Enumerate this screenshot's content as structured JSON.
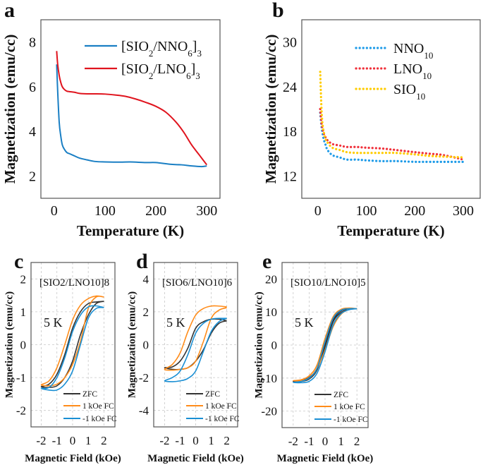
{
  "chart_data": [
    {
      "panel": "a",
      "type": "line",
      "xlabel": "Temperature (K)",
      "ylabel": "Magnetization (emu/cc)",
      "xlim": [
        -26,
        326
      ],
      "ylim": [
        1,
        9
      ],
      "xticks": [
        0,
        100,
        200,
        300
      ],
      "yticks": [
        2,
        4,
        6,
        8
      ],
      "grid": false,
      "legend_position": "top-right",
      "series": [
        {
          "name": "[SIO2/NNO6]3",
          "color": "#1a7fc4",
          "style": "solid",
          "x": [
            5,
            7,
            10,
            13,
            16,
            20,
            25,
            30,
            40,
            50,
            65,
            80,
            100,
            130,
            150,
            180,
            200,
            230,
            250,
            270,
            290,
            300
          ],
          "y": [
            7.0,
            5.8,
            4.4,
            3.8,
            3.4,
            3.2,
            3.05,
            3.0,
            2.9,
            2.8,
            2.72,
            2.65,
            2.63,
            2.62,
            2.63,
            2.6,
            2.6,
            2.52,
            2.5,
            2.45,
            2.42,
            2.45
          ]
        },
        {
          "name": "[SIO2/LNO6]3",
          "color": "#e0141e",
          "style": "solid",
          "x": [
            5,
            7,
            10,
            13,
            16,
            20,
            25,
            30,
            40,
            50,
            65,
            80,
            100,
            120,
            140,
            160,
            180,
            200,
            220,
            240,
            255,
            270,
            285,
            300
          ],
          "y": [
            7.6,
            7.0,
            6.5,
            6.2,
            6.0,
            5.88,
            5.8,
            5.78,
            5.75,
            5.7,
            5.68,
            5.68,
            5.67,
            5.63,
            5.57,
            5.45,
            5.3,
            5.12,
            4.85,
            4.4,
            3.95,
            3.4,
            2.95,
            2.5
          ]
        }
      ]
    },
    {
      "panel": "b",
      "type": "scatter",
      "xlabel": "Temperature (K)",
      "ylabel": "Magnetization (emu/cc)",
      "xlim": [
        -33,
        335
      ],
      "ylim": [
        9,
        33
      ],
      "xticks": [
        0,
        100,
        200,
        300
      ],
      "yticks": [
        12,
        18,
        24,
        30
      ],
      "grid": false,
      "legend_position": "top-right",
      "series": [
        {
          "name": "NNO10",
          "color": "#1e9be8",
          "style": "dotted",
          "x": [
            5,
            8,
            12,
            16,
            20,
            30,
            45,
            60,
            80,
            100,
            130,
            160,
            200,
            230,
            260,
            300
          ],
          "y": [
            20.5,
            18.5,
            17.0,
            16.2,
            15.5,
            14.8,
            14.5,
            14.2,
            14.2,
            14.1,
            14.0,
            14.0,
            13.9,
            13.9,
            13.9,
            13.9
          ]
        },
        {
          "name": "LNO10",
          "color": "#f0313b",
          "style": "dotted",
          "x": [
            5,
            8,
            12,
            16,
            20,
            30,
            45,
            60,
            80,
            100,
            130,
            160,
            200,
            230,
            260,
            300
          ],
          "y": [
            21.0,
            19.0,
            17.8,
            17.2,
            16.8,
            16.3,
            16.1,
            15.9,
            15.9,
            15.8,
            15.7,
            15.5,
            15.2,
            15.0,
            14.8,
            14.2
          ]
        },
        {
          "name": "SIO10",
          "color": "#ffcc00",
          "style": "dotted",
          "x": [
            5,
            6,
            7,
            9,
            12,
            16,
            20,
            30,
            45,
            60,
            80,
            100,
            130,
            160,
            200,
            230,
            260,
            300
          ],
          "y": [
            26.0,
            24.0,
            22.0,
            19.5,
            18.0,
            17.0,
            16.5,
            15.8,
            15.5,
            15.2,
            15.1,
            15.1,
            15.1,
            15.1,
            14.9,
            14.7,
            14.6,
            14.5
          ]
        }
      ]
    },
    {
      "panel": "c",
      "type": "line",
      "title": "[SIO2/LNO10]8",
      "annotation": "5 K",
      "xlabel": "Magnetic Field (kOe)",
      "ylabel": "Magnetization (emu/cc)",
      "xlim": [
        -2.65,
        2.7
      ],
      "ylim": [
        -2.5,
        2.5
      ],
      "xticks": [
        -2,
        -1,
        0,
        1,
        2
      ],
      "yticks": [
        -2,
        -1,
        0,
        1,
        2
      ],
      "grid": true,
      "legend_position": "bottom-right",
      "series": [
        {
          "name": "ZFC",
          "color": "#333333",
          "x": [
            2,
            1.5,
            1,
            0.5,
            0,
            -0.5,
            -1,
            -1.5,
            -2,
            -1.5,
            -1,
            -0.5,
            0,
            0.5,
            1,
            1.5,
            2
          ],
          "y": [
            1.32,
            1.3,
            1.25,
            1.0,
            0.5,
            -0.3,
            -0.9,
            -1.2,
            -1.28,
            -1.3,
            -1.25,
            -1.0,
            -0.5,
            0.3,
            0.9,
            1.25,
            1.32
          ]
        },
        {
          "name": "1 kOe FC",
          "color": "#ff8c1a",
          "x": [
            2,
            1.5,
            1,
            0.5,
            0,
            -0.5,
            -1,
            -1.5,
            -2,
            -1.5,
            -1,
            -0.5,
            0,
            0.5,
            1,
            1.5,
            2
          ],
          "y": [
            1.45,
            1.48,
            1.4,
            1.2,
            0.75,
            0.0,
            -0.7,
            -1.1,
            -1.22,
            -1.25,
            -1.2,
            -1.0,
            -0.6,
            0.1,
            1.1,
            1.45,
            1.45
          ]
        },
        {
          "name": "-1 kOe FC",
          "color": "#1a8fd4",
          "x": [
            2,
            1.5,
            1,
            0.5,
            0,
            -0.5,
            -1,
            -1.5,
            -2,
            -1.5,
            -1,
            -0.5,
            0,
            0.5,
            1,
            1.5,
            2
          ],
          "y": [
            1.13,
            1.18,
            1.15,
            0.9,
            0.4,
            -0.4,
            -1.0,
            -1.3,
            -1.33,
            -1.38,
            -1.38,
            -1.2,
            -0.8,
            0.0,
            0.8,
            1.1,
            1.13
          ]
        }
      ]
    },
    {
      "panel": "d",
      "type": "line",
      "title": "[SIO6/LNO10]6",
      "annotation": "5 K",
      "xlabel": "Magnetic Field (kOe)",
      "ylabel": "Magnetization (emu/cc)",
      "xlim": [
        -2.7,
        2.7
      ],
      "ylim": [
        -5,
        5
      ],
      "xticks": [
        -2,
        -1,
        0,
        1,
        2
      ],
      "yticks": [
        -4,
        -2,
        0,
        2,
        4
      ],
      "grid": true,
      "legend_position": "bottom-right",
      "series": [
        {
          "name": "ZFC",
          "color": "#333333",
          "x": [
            2,
            1.5,
            1,
            0.5,
            0,
            -0.5,
            -1,
            -1.5,
            -2,
            -1.5,
            -1,
            -0.5,
            0,
            0.5,
            1,
            1.5,
            2
          ],
          "y": [
            1.45,
            1.55,
            1.55,
            1.4,
            1.0,
            -0.2,
            -1.0,
            -1.35,
            -1.4,
            -1.5,
            -1.5,
            -1.4,
            -1.0,
            -0.3,
            0.7,
            1.3,
            1.45
          ]
        },
        {
          "name": "1 kOe FC",
          "color": "#ff8c1a",
          "x": [
            2,
            1.5,
            1,
            0.5,
            0,
            -0.5,
            -1,
            -1.5,
            -2,
            -1.5,
            -1,
            -0.5,
            0,
            0.5,
            1,
            1.5,
            2
          ],
          "y": [
            2.3,
            2.35,
            2.35,
            2.2,
            1.8,
            0.8,
            -0.5,
            -1.2,
            -1.5,
            -1.55,
            -1.5,
            -1.4,
            -1.0,
            0.2,
            1.6,
            2.1,
            2.25
          ]
        },
        {
          "name": "-1 kOe FC",
          "color": "#1a8fd4",
          "x": [
            2,
            1.5,
            1,
            0.5,
            0,
            -0.5,
            -1,
            -1.5,
            -2,
            -1.5,
            -1,
            -0.5,
            0,
            0.5,
            1,
            1.5,
            2
          ],
          "y": [
            1.6,
            1.6,
            1.55,
            1.3,
            0.7,
            -0.6,
            -1.6,
            -2.0,
            -2.2,
            -2.25,
            -2.2,
            -2.05,
            -1.6,
            -0.4,
            0.8,
            1.4,
            1.6
          ]
        }
      ]
    },
    {
      "panel": "e",
      "type": "line",
      "title": "[SIO10/LNO10]5",
      "annotation": "5 K",
      "xlabel": "Magnetic Field (kOe)",
      "ylabel": "Magnetization (emu/cc)",
      "xlim": [
        -2.7,
        2.7
      ],
      "ylim": [
        -25,
        25
      ],
      "xticks": [
        -2,
        -1,
        0,
        1,
        2
      ],
      "yticks": [
        -20,
        -10,
        0,
        10,
        20
      ],
      "grid": true,
      "legend_position": "bottom-right",
      "series": [
        {
          "name": "ZFC",
          "color": "#333333",
          "x": [
            2,
            1.5,
            1,
            0.5,
            0,
            -0.5,
            -1,
            -1.5,
            -2,
            -1.5,
            -1,
            -0.5,
            0,
            0.5,
            1,
            1.5,
            2
          ],
          "y": [
            11,
            11,
            10.3,
            7.5,
            0.5,
            -7,
            -9.8,
            -10.8,
            -11,
            -11,
            -10.3,
            -7.5,
            -0.5,
            7,
            9.8,
            10.8,
            11
          ]
        },
        {
          "name": "1 kOe FC",
          "color": "#ff8c1a",
          "x": [
            2,
            1.5,
            1,
            0.5,
            0,
            -0.5,
            -1,
            -1.5,
            -2,
            -1.5,
            -1,
            -0.5,
            0,
            0.5,
            1,
            1.5,
            2
          ],
          "y": [
            11,
            11.2,
            10.8,
            8.5,
            2,
            -6,
            -9.3,
            -10.5,
            -10.8,
            -10.8,
            -10,
            -7,
            -1.5,
            5.5,
            9.3,
            10.8,
            11
          ]
        },
        {
          "name": "-1 kOe FC",
          "color": "#1a8fd4",
          "x": [
            2,
            1.5,
            1,
            0.5,
            0,
            -0.5,
            -1,
            -1.5,
            -2,
            -1.5,
            -1,
            -0.5,
            0,
            0.5,
            1,
            1.5,
            2
          ],
          "y": [
            11,
            11,
            10.5,
            8,
            1,
            -7,
            -10,
            -11,
            -11.3,
            -11.4,
            -11,
            -8.5,
            -2,
            6,
            9.5,
            10.7,
            11
          ]
        }
      ]
    }
  ]
}
